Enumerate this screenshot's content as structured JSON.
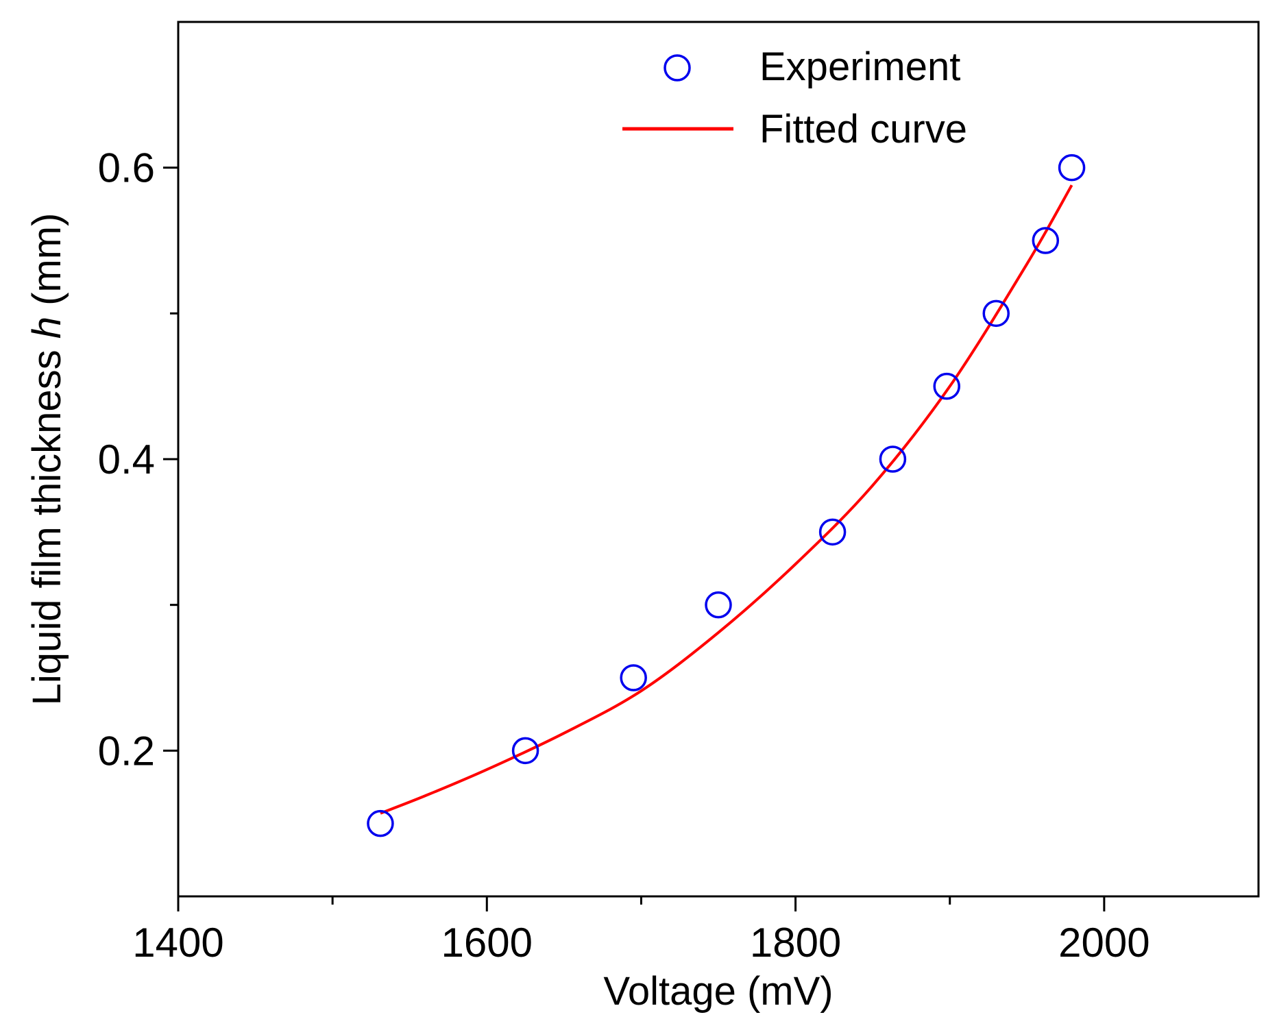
{
  "chart_data": {
    "type": "scatter",
    "title": "",
    "xlabel": "Voltage (mV)",
    "ylabel_parts": [
      "Liquid film thickness ",
      "h",
      " (mm)"
    ],
    "xlim": [
      1400,
      2100
    ],
    "ylim": [
      0.1,
      0.7
    ],
    "xticks": [
      1400,
      1600,
      1800,
      2000
    ],
    "xticks_minor": [
      1500,
      1700,
      1900
    ],
    "yticks": [
      0.2,
      0.4,
      0.6
    ],
    "yticks_minor": [
      0.3,
      0.5
    ],
    "tick_labels_x": [
      "1400",
      "1600",
      "1800",
      "2000"
    ],
    "tick_labels_y": [
      "0.2",
      "0.4",
      "0.6"
    ],
    "grid": false,
    "legend_position": "top-center",
    "series": [
      {
        "name": "Experiment",
        "kind": "scatter",
        "marker": "open-circle",
        "color": "#0000ee",
        "x": [
          1531,
          1625,
          1695,
          1750,
          1824,
          1863,
          1898,
          1930,
          1962,
          1979
        ],
        "y": [
          0.15,
          0.2,
          0.25,
          0.3,
          0.35,
          0.4,
          0.45,
          0.5,
          0.55,
          0.6
        ]
      },
      {
        "name": "Fitted curve",
        "kind": "line",
        "color": "#ff0000",
        "x": [
          1531,
          1560,
          1600,
          1650,
          1700,
          1750,
          1800,
          1850,
          1900,
          1950,
          1979
        ],
        "y": [
          0.157,
          0.169,
          0.187,
          0.212,
          0.241,
          0.281,
          0.328,
          0.382,
          0.45,
          0.534,
          0.588
        ]
      }
    ]
  }
}
